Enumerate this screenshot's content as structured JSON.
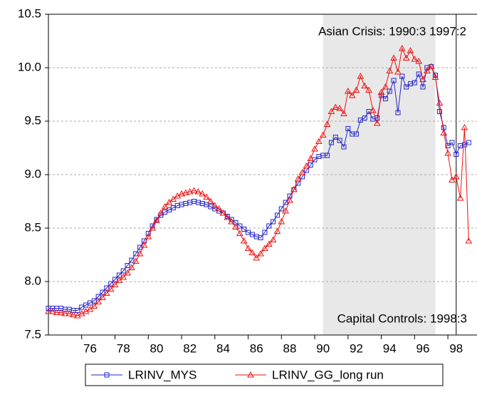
{
  "chart_data": {
    "type": "line",
    "annotations": [
      "Asian Crisis: 1990:3 1997:2",
      "Capital Controls: 1998:3"
    ],
    "shade": [
      1990.5,
      1997.25
    ],
    "shade_color": "#e8e8e8",
    "vline": 1998.5,
    "x": [
      1974,
      1974.25,
      1974.5,
      1974.75,
      1975,
      1975.25,
      1975.5,
      1975.75,
      1976,
      1976.25,
      1976.5,
      1976.75,
      1977,
      1977.25,
      1977.5,
      1977.75,
      1978,
      1978.25,
      1978.5,
      1978.75,
      1979,
      1979.25,
      1979.5,
      1979.75,
      1980,
      1980.25,
      1980.5,
      1980.75,
      1981,
      1981.25,
      1981.5,
      1981.75,
      1982,
      1982.25,
      1982.5,
      1982.75,
      1983,
      1983.25,
      1983.5,
      1983.75,
      1984,
      1984.25,
      1984.5,
      1984.75,
      1985,
      1985.25,
      1985.5,
      1985.75,
      1986,
      1986.25,
      1986.5,
      1986.75,
      1987,
      1987.25,
      1987.5,
      1987.75,
      1988,
      1988.25,
      1988.5,
      1988.75,
      1989,
      1989.25,
      1989.5,
      1989.75,
      1990,
      1990.25,
      1990.5,
      1990.75,
      1991,
      1991.25,
      1991.5,
      1991.75,
      1992,
      1992.25,
      1992.5,
      1992.75,
      1993,
      1993.25,
      1993.5,
      1993.75,
      1994,
      1994.25,
      1994.5,
      1994.75,
      1995,
      1995.25,
      1995.5,
      1995.75,
      1996,
      1996.25,
      1996.5,
      1996.75,
      1997,
      1997.25,
      1997.5,
      1997.75,
      1998,
      1998.25,
      1998.5,
      1998.75,
      1999,
      1999.25
    ],
    "series": [
      {
        "name": "LRINV_MYS",
        "color": "#2222cc",
        "marker": "square",
        "values": [
          7.75,
          7.75,
          7.75,
          7.75,
          7.74,
          7.74,
          7.73,
          7.73,
          7.76,
          7.78,
          7.8,
          7.82,
          7.86,
          7.9,
          7.94,
          7.98,
          8.02,
          8.06,
          8.1,
          8.15,
          8.2,
          8.26,
          8.32,
          8.38,
          8.45,
          8.52,
          8.58,
          8.62,
          8.65,
          8.67,
          8.69,
          8.71,
          8.72,
          8.73,
          8.74,
          8.75,
          8.74,
          8.73,
          8.72,
          8.7,
          8.68,
          8.66,
          8.64,
          8.61,
          8.58,
          8.55,
          8.52,
          8.49,
          8.46,
          8.44,
          8.42,
          8.41,
          8.46,
          8.52,
          8.56,
          8.62,
          8.68,
          8.74,
          8.8,
          8.86,
          8.92,
          8.98,
          9.04,
          9.09,
          9.14,
          9.17,
          9.18,
          9.18,
          9.3,
          9.35,
          9.32,
          9.26,
          9.43,
          9.38,
          9.38,
          9.51,
          9.53,
          9.59,
          9.52,
          9.53,
          9.74,
          9.71,
          9.78,
          9.88,
          9.58,
          9.92,
          9.82,
          9.85,
          9.86,
          9.94,
          9.82,
          10.0,
          10.01,
          9.93,
          9.59,
          9.44,
          9.27,
          9.3,
          9.19,
          9.27,
          9.28,
          9.3
        ]
      },
      {
        "name": "LRINV_GG_long run",
        "color": "#ee1111",
        "marker": "triangle",
        "values": [
          7.72,
          7.72,
          7.71,
          7.71,
          7.7,
          7.7,
          7.69,
          7.68,
          7.7,
          7.72,
          7.74,
          7.77,
          7.81,
          7.85,
          7.89,
          7.93,
          7.97,
          8.01,
          8.04,
          8.08,
          8.13,
          8.19,
          8.26,
          8.34,
          8.42,
          8.5,
          8.57,
          8.64,
          8.7,
          8.74,
          8.77,
          8.8,
          8.82,
          8.83,
          8.84,
          8.85,
          8.84,
          8.82,
          8.79,
          8.75,
          8.71,
          8.68,
          8.64,
          8.6,
          8.56,
          8.51,
          8.45,
          8.38,
          8.31,
          8.27,
          8.22,
          8.26,
          8.31,
          8.35,
          8.39,
          8.47,
          8.56,
          8.66,
          8.76,
          8.86,
          8.96,
          9.02,
          9.08,
          9.15,
          9.24,
          9.31,
          9.37,
          9.47,
          9.59,
          9.63,
          9.62,
          9.57,
          9.78,
          9.74,
          9.79,
          9.92,
          9.83,
          9.79,
          9.6,
          9.48,
          9.77,
          9.82,
          9.97,
          10.09,
          9.96,
          10.18,
          10.09,
          10.16,
          10.08,
          10.06,
          9.89,
          9.97,
          10.01,
          9.91,
          9.67,
          9.39,
          9.2,
          8.95,
          8.98,
          8.78,
          9.44,
          8.38
        ]
      }
    ],
    "xlim": [
      1974,
      1999.75
    ],
    "xticks": [
      {
        "value": 1976,
        "label": "76"
      },
      {
        "value": 1978,
        "label": "78"
      },
      {
        "value": 1980,
        "label": "80"
      },
      {
        "value": 1982,
        "label": "82"
      },
      {
        "value": 1984,
        "label": "84"
      },
      {
        "value": 1986,
        "label": "86"
      },
      {
        "value": 1988,
        "label": "88"
      },
      {
        "value": 1990,
        "label": "90"
      },
      {
        "value": 1992,
        "label": "92"
      },
      {
        "value": 1994,
        "label": "94"
      },
      {
        "value": 1996,
        "label": "96"
      },
      {
        "value": 1998,
        "label": "98"
      }
    ],
    "ylim": [
      7.5,
      10.5
    ],
    "yticks": [
      7.5,
      {
        "value": 8,
        "label": "8.0"
      },
      8.5,
      {
        "value": 9,
        "label": "9.0"
      },
      9.5,
      {
        "value": 10,
        "label": "10.0"
      },
      10.5
    ],
    "grid": true
  }
}
